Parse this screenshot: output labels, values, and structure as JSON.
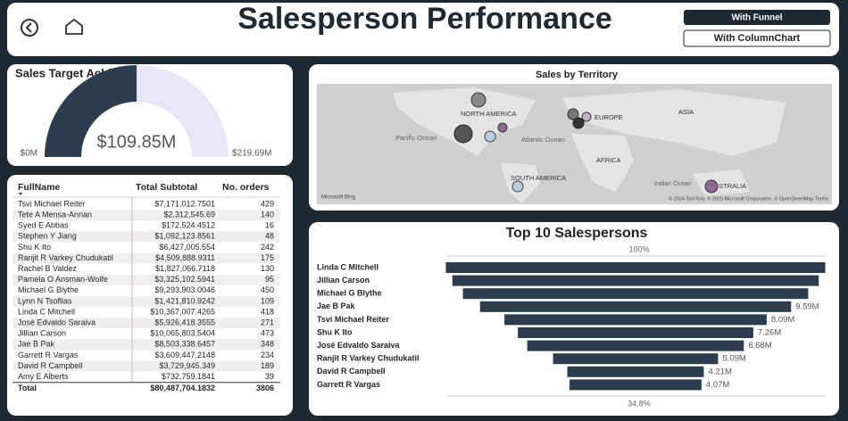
{
  "header": {
    "title": "Salesperson Performance",
    "buttons": [
      "With Funnel",
      "With ColumnChart"
    ]
  },
  "map": {
    "title": "Sales by Territory",
    "labels": [
      "NORTH AMERICA",
      "EUROPE",
      "ASIA",
      "Pacific Ocean",
      "Atlantic Ocean",
      "AFRICA",
      "SOUTH AMERICA",
      "Indian Ocean",
      "STRALIA"
    ],
    "logo": "Microsoft Bing",
    "attribution": "© 2024 TomTom, © 2025 Microsoft Corporation, © OpenStreetMap Terms"
  },
  "table": {
    "columns": [
      "FullName",
      "Total Subtotal",
      "No. orders"
    ],
    "rows": [
      [
        "Tsvi Michael Reiter",
        "$7,171,012.7501",
        "429"
      ],
      [
        "Tete A Mensa-Annan",
        "$2,312,545.69",
        "140"
      ],
      [
        "Syed E Abbas",
        "$172,524.4512",
        "16"
      ],
      [
        "Stephen Y Jiang",
        "$1,092,123.8561",
        "48"
      ],
      [
        "Shu K Ito",
        "$6,427,005.554",
        "242"
      ],
      [
        "Ranjit R Varkey Chudukatil",
        "$4,509,888.9311",
        "175"
      ],
      [
        "Rachel B Valdez",
        "$1,827,066.7118",
        "130"
      ],
      [
        "Pamela O Ansman-Wolfe",
        "$3,325,102.5941",
        "95"
      ],
      [
        "Michael G Blythe",
        "$9,293,903.0046",
        "450"
      ],
      [
        "Lynn N Tsoflias",
        "$1,421,810.9242",
        "109"
      ],
      [
        "Linda C Mitchell",
        "$10,367,007.4265",
        "418"
      ],
      [
        "José Edvaldo Saraiva",
        "$5,926,418.3555",
        "271"
      ],
      [
        "Jillian Carson",
        "$10,065,803.5404",
        "473"
      ],
      [
        "Jae B Pak",
        "$8,503,338.6457",
        "348"
      ],
      [
        "Garrett R Vargas",
        "$3,609,447.2148",
        "234"
      ],
      [
        "David R Campbell",
        "$3,729,945.349",
        "189"
      ],
      [
        "Amy E Alberts",
        "$732,759.1841",
        "39"
      ]
    ],
    "total": [
      "Total",
      "$80,487,704.1832",
      "3806"
    ]
  },
  "chart_data": [
    {
      "type": "gauge",
      "title": "Sales Target Achievement",
      "values": [
        109.85
      ],
      "value_labels": [
        "$109.85M"
      ],
      "color": "#2c3e4e",
      "track_color": "#e9e7f7",
      "ylim": [
        0,
        219.69
      ],
      "yticks": [
        {
          "value": 0,
          "label": "$0M"
        },
        {
          "value": 219.69,
          "label": "$219.69M"
        }
      ]
    },
    {
      "type": "funnel",
      "title": "Top 10 Salespersons",
      "color": "#2c3e4e",
      "categories": [
        "Linda C Mitchell",
        "Jillian Carson",
        "Michael G Blythe",
        "Jae B Pak",
        "Tsvi Michael Reiter",
        "Shu K Ito",
        "José Edvaldo Saraiva",
        "Ranjit R Varkey Chudukatil",
        "David R Campbell",
        "Garrett R Vargas"
      ],
      "values": [
        11.7,
        11.3,
        10.65,
        9.59,
        8.09,
        7.26,
        6.68,
        5.09,
        4.21,
        4.07
      ],
      "value_labels": [
        null,
        null,
        null,
        "9.59M",
        "8.09M",
        "7.26M",
        "6.68M",
        "5.09M",
        "4.21M",
        "4.07M"
      ],
      "annotations": [
        "100%",
        "34.8%"
      ]
    }
  ]
}
